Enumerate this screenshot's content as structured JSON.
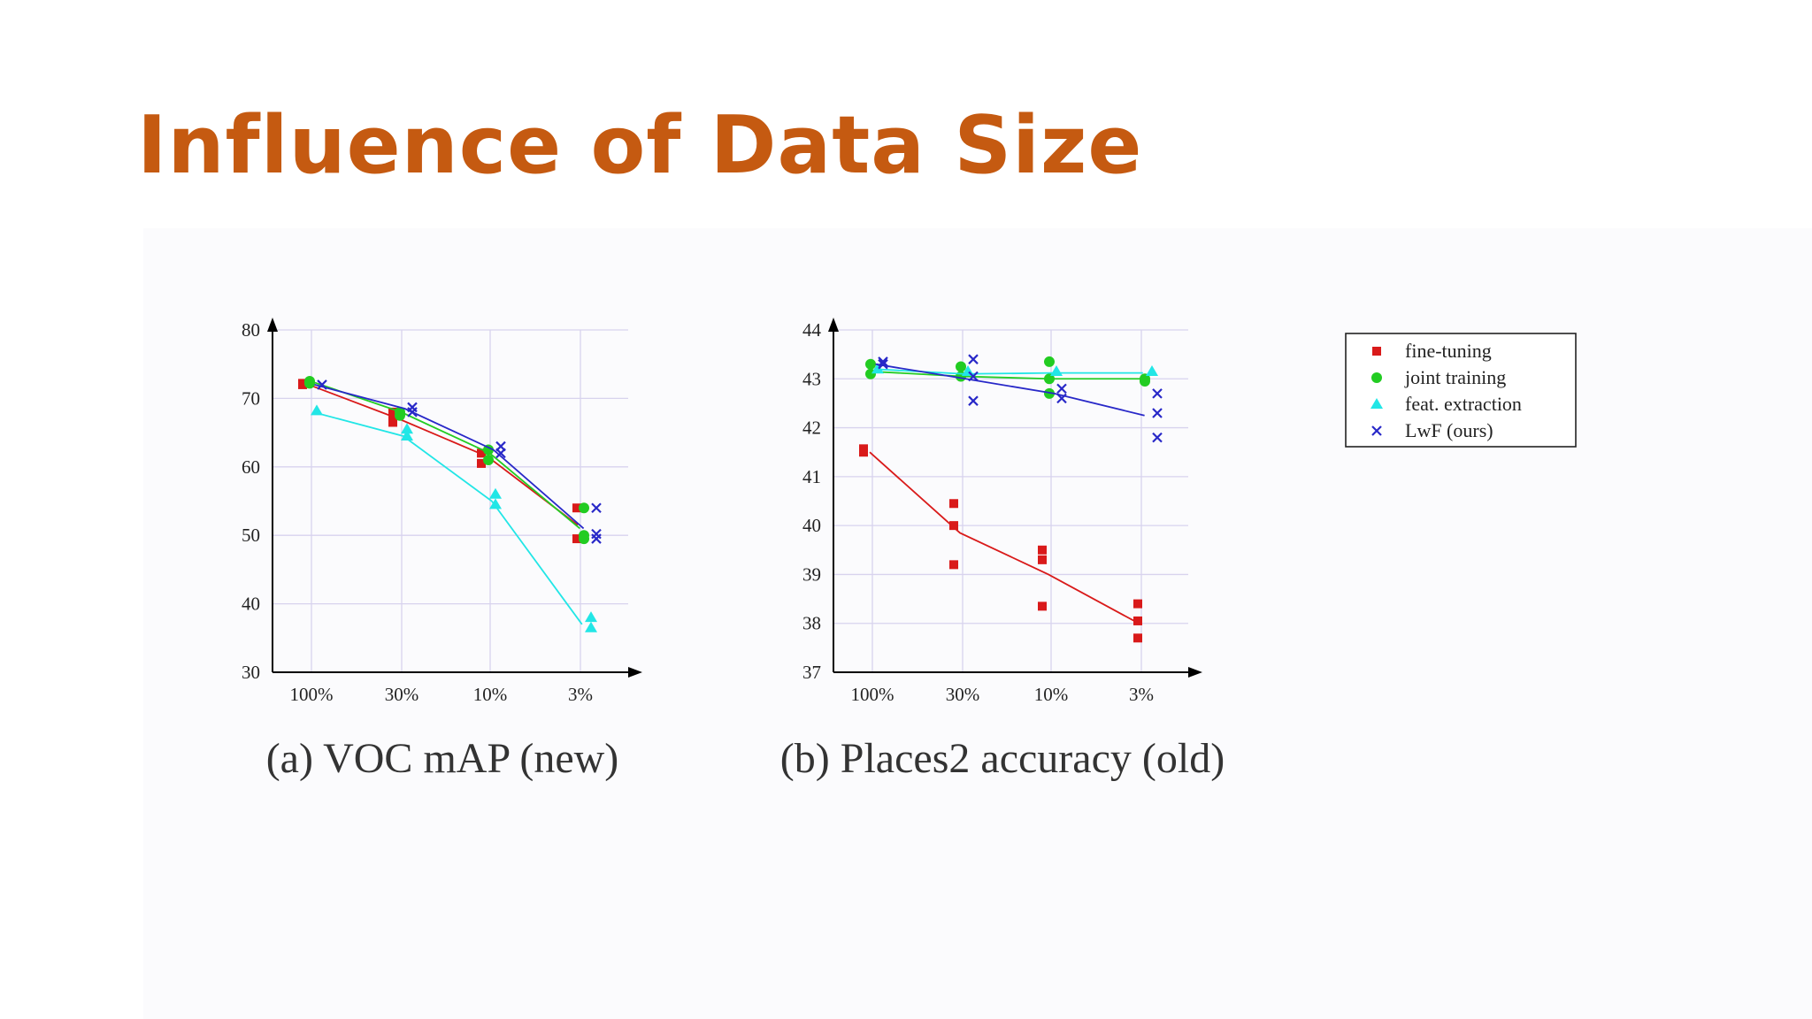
{
  "slide": {
    "title": "Influence of Data Size"
  },
  "colors": {
    "title": "#c55a11"
  },
  "legend": {
    "placement": "right",
    "entries": [
      {
        "label": "fine-tuning",
        "color": "#d91a1a",
        "marker": "square"
      },
      {
        "label": "joint training",
        "color": "#22cc22",
        "marker": "circle"
      },
      {
        "label": "feat. extraction",
        "color": "#22e6e6",
        "marker": "triangle"
      },
      {
        "label": "LwF (ours)",
        "color": "#2828c8",
        "marker": "cross"
      }
    ]
  },
  "chart_data": [
    {
      "type": "scatter",
      "caption": "(a) VOC mAP (new)",
      "categories": [
        "100%",
        "30%",
        "10%",
        "3%"
      ],
      "yticks": [
        30,
        40,
        50,
        60,
        70,
        80
      ],
      "ylim": [
        30,
        80
      ],
      "grid": true,
      "series": [
        {
          "name": "fine-tuning",
          "color": "#d91a1a",
          "marker": "square",
          "trend": [
            72,
            67,
            61.5,
            51.5
          ],
          "points": [
            [
              0,
              72
            ],
            [
              0,
              72.2
            ],
            [
              1,
              66.5
            ],
            [
              1,
              67.5
            ],
            [
              1,
              68
            ],
            [
              2,
              60.5
            ],
            [
              2,
              62
            ],
            [
              3,
              49.5
            ],
            [
              3,
              54
            ]
          ]
        },
        {
          "name": "joint training",
          "color": "#22cc22",
          "marker": "circle",
          "trend": [
            72.5,
            68,
            62,
            51
          ],
          "points": [
            [
              0,
              72.5
            ],
            [
              0,
              72.2
            ],
            [
              1,
              67.5
            ],
            [
              1,
              68
            ],
            [
              2,
              61
            ],
            [
              2,
              62.5
            ],
            [
              3,
              49.5
            ],
            [
              3,
              50
            ],
            [
              3,
              54
            ]
          ]
        },
        {
          "name": "feat. extraction",
          "color": "#22e6e6",
          "marker": "triangle",
          "trend": [
            68,
            64.5,
            55,
            37
          ],
          "points": [
            [
              0,
              68.2
            ],
            [
              1,
              64.5
            ],
            [
              1,
              65.5
            ],
            [
              2,
              54.5
            ],
            [
              2,
              56
            ],
            [
              3,
              36.5
            ],
            [
              3,
              38
            ]
          ]
        },
        {
          "name": "LwF (ours)",
          "color": "#2828c8",
          "marker": "cross",
          "trend": [
            72,
            68.5,
            62.5,
            51
          ],
          "points": [
            [
              0,
              72
            ],
            [
              1,
              68
            ],
            [
              1,
              68.7
            ],
            [
              2,
              62
            ],
            [
              2,
              63
            ],
            [
              3,
              49.5
            ],
            [
              3,
              50.2
            ],
            [
              3,
              54
            ]
          ]
        }
      ]
    },
    {
      "type": "scatter",
      "caption": "(b) Places2 accuracy (old)",
      "categories": [
        "100%",
        "30%",
        "10%",
        "3%"
      ],
      "yticks": [
        37,
        38,
        39,
        40,
        41,
        42,
        43,
        44
      ],
      "ylim": [
        37,
        44
      ],
      "grid": true,
      "series": [
        {
          "name": "fine-tuning",
          "color": "#d91a1a",
          "marker": "square",
          "trend": [
            41.5,
            39.85,
            39,
            38
          ],
          "points": [
            [
              0,
              41.5
            ],
            [
              0,
              41.57
            ],
            [
              1,
              40.45
            ],
            [
              1,
              40
            ],
            [
              1,
              39.2
            ],
            [
              2,
              39.5
            ],
            [
              2,
              39.3
            ],
            [
              2,
              38.35
            ],
            [
              3,
              38.4
            ],
            [
              3,
              38.05
            ],
            [
              3,
              37.7
            ]
          ]
        },
        {
          "name": "joint training",
          "color": "#22cc22",
          "marker": "circle",
          "trend": [
            43.15,
            43.05,
            43,
            43
          ],
          "points": [
            [
              0,
              43.3
            ],
            [
              0,
              43.1
            ],
            [
              1,
              43.25
            ],
            [
              1,
              43.05
            ],
            [
              2,
              43.35
            ],
            [
              2,
              43
            ],
            [
              2,
              42.7
            ],
            [
              3,
              43
            ],
            [
              3,
              42.95
            ]
          ]
        },
        {
          "name": "feat. extraction",
          "color": "#22e6e6",
          "marker": "triangle",
          "trend": [
            43.2,
            43.1,
            43.12,
            43.12
          ],
          "points": [
            [
              0,
              43.2
            ],
            [
              1,
              43.15
            ],
            [
              2,
              43.15
            ],
            [
              3,
              43.15
            ]
          ]
        },
        {
          "name": "LwF (ours)",
          "color": "#2828c8",
          "marker": "cross",
          "trend": [
            43.3,
            43,
            42.7,
            42.25
          ],
          "points": [
            [
              0,
              43.35
            ],
            [
              0,
              43.3
            ],
            [
              1,
              43.4
            ],
            [
              1,
              43.05
            ],
            [
              1,
              42.55
            ],
            [
              2,
              42.8
            ],
            [
              2,
              42.6
            ],
            [
              3,
              42.7
            ],
            [
              3,
              42.3
            ],
            [
              3,
              41.8
            ]
          ]
        }
      ]
    }
  ]
}
